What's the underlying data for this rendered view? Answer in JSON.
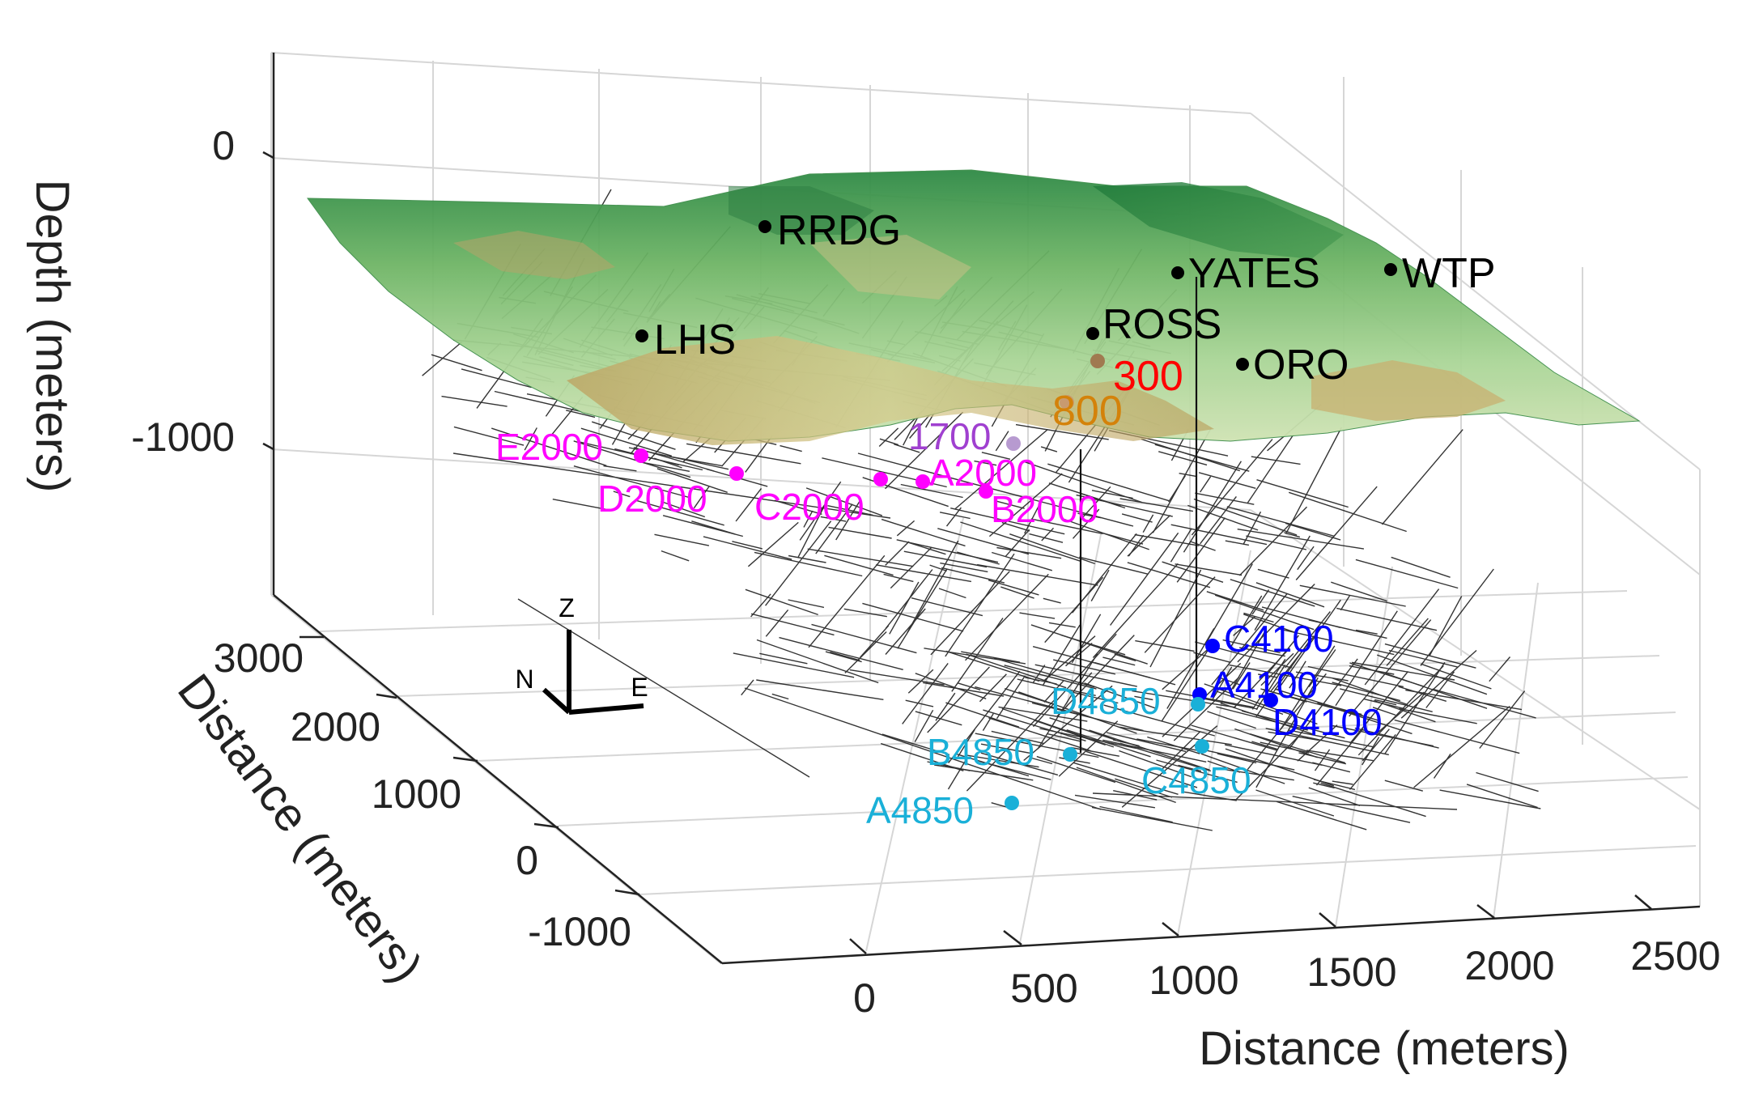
{
  "chart_data": {
    "type": "scatter",
    "subtype": "3d-mine-map",
    "axes": {
      "x": {
        "label": "Distance (meters)",
        "ticks": [
          "0",
          "500",
          "1000",
          "1500",
          "2000",
          "2500"
        ]
      },
      "y": {
        "label": "Distance (meters)",
        "ticks": [
          "-1000",
          "0",
          "1000",
          "2000",
          "3000"
        ]
      },
      "z": {
        "label": "Depth (meters)",
        "ticks": [
          "0",
          "-1000"
        ]
      }
    },
    "grid": true,
    "surface": {
      "description_colormap": "green-to-tan topography",
      "colors": [
        "#1f7a3a",
        "#5aa85a",
        "#9fd08f",
        "#c7e2b0",
        "#b59a55"
      ]
    },
    "triad": {
      "z": "Z",
      "n": "N",
      "e": "E"
    },
    "stations": [
      {
        "name": "RRDG",
        "group": "surface",
        "color": "#000000"
      },
      {
        "name": "YATES",
        "group": "surface",
        "color": "#000000"
      },
      {
        "name": "WTP",
        "group": "surface",
        "color": "#000000"
      },
      {
        "name": "LHS",
        "group": "surface",
        "color": "#000000"
      },
      {
        "name": "ROSS",
        "group": "surface",
        "color": "#000000"
      },
      {
        "name": "ORO",
        "group": "surface",
        "color": "#000000"
      },
      {
        "name": "300",
        "group": "300 level",
        "color": "#ff0000"
      },
      {
        "name": "800",
        "group": "800 level",
        "color": "#d4820a"
      },
      {
        "name": "1700",
        "group": "1700 level",
        "color": "#a040d0"
      },
      {
        "name": "E2000",
        "group": "2000 level",
        "color": "#ff00ff"
      },
      {
        "name": "D2000",
        "group": "2000 level",
        "color": "#ff00ff"
      },
      {
        "name": "C2000",
        "group": "2000 level",
        "color": "#ff00ff"
      },
      {
        "name": "A2000",
        "group": "2000 level",
        "color": "#ff00ff"
      },
      {
        "name": "B2000",
        "group": "2000 level",
        "color": "#ff00ff"
      },
      {
        "name": "C4100",
        "group": "4100 level",
        "color": "#0000ff"
      },
      {
        "name": "A4100",
        "group": "4100 level",
        "color": "#0000ff"
      },
      {
        "name": "D4100",
        "group": "4100 level",
        "color": "#0000ff"
      },
      {
        "name": "D4850",
        "group": "4850 level",
        "color": "#1ab0d8"
      },
      {
        "name": "B4850",
        "group": "4850 level",
        "color": "#1ab0d8"
      },
      {
        "name": "C4850",
        "group": "4850 level",
        "color": "#1ab0d8"
      },
      {
        "name": "A4850",
        "group": "4850 level",
        "color": "#1ab0d8"
      }
    ]
  }
}
